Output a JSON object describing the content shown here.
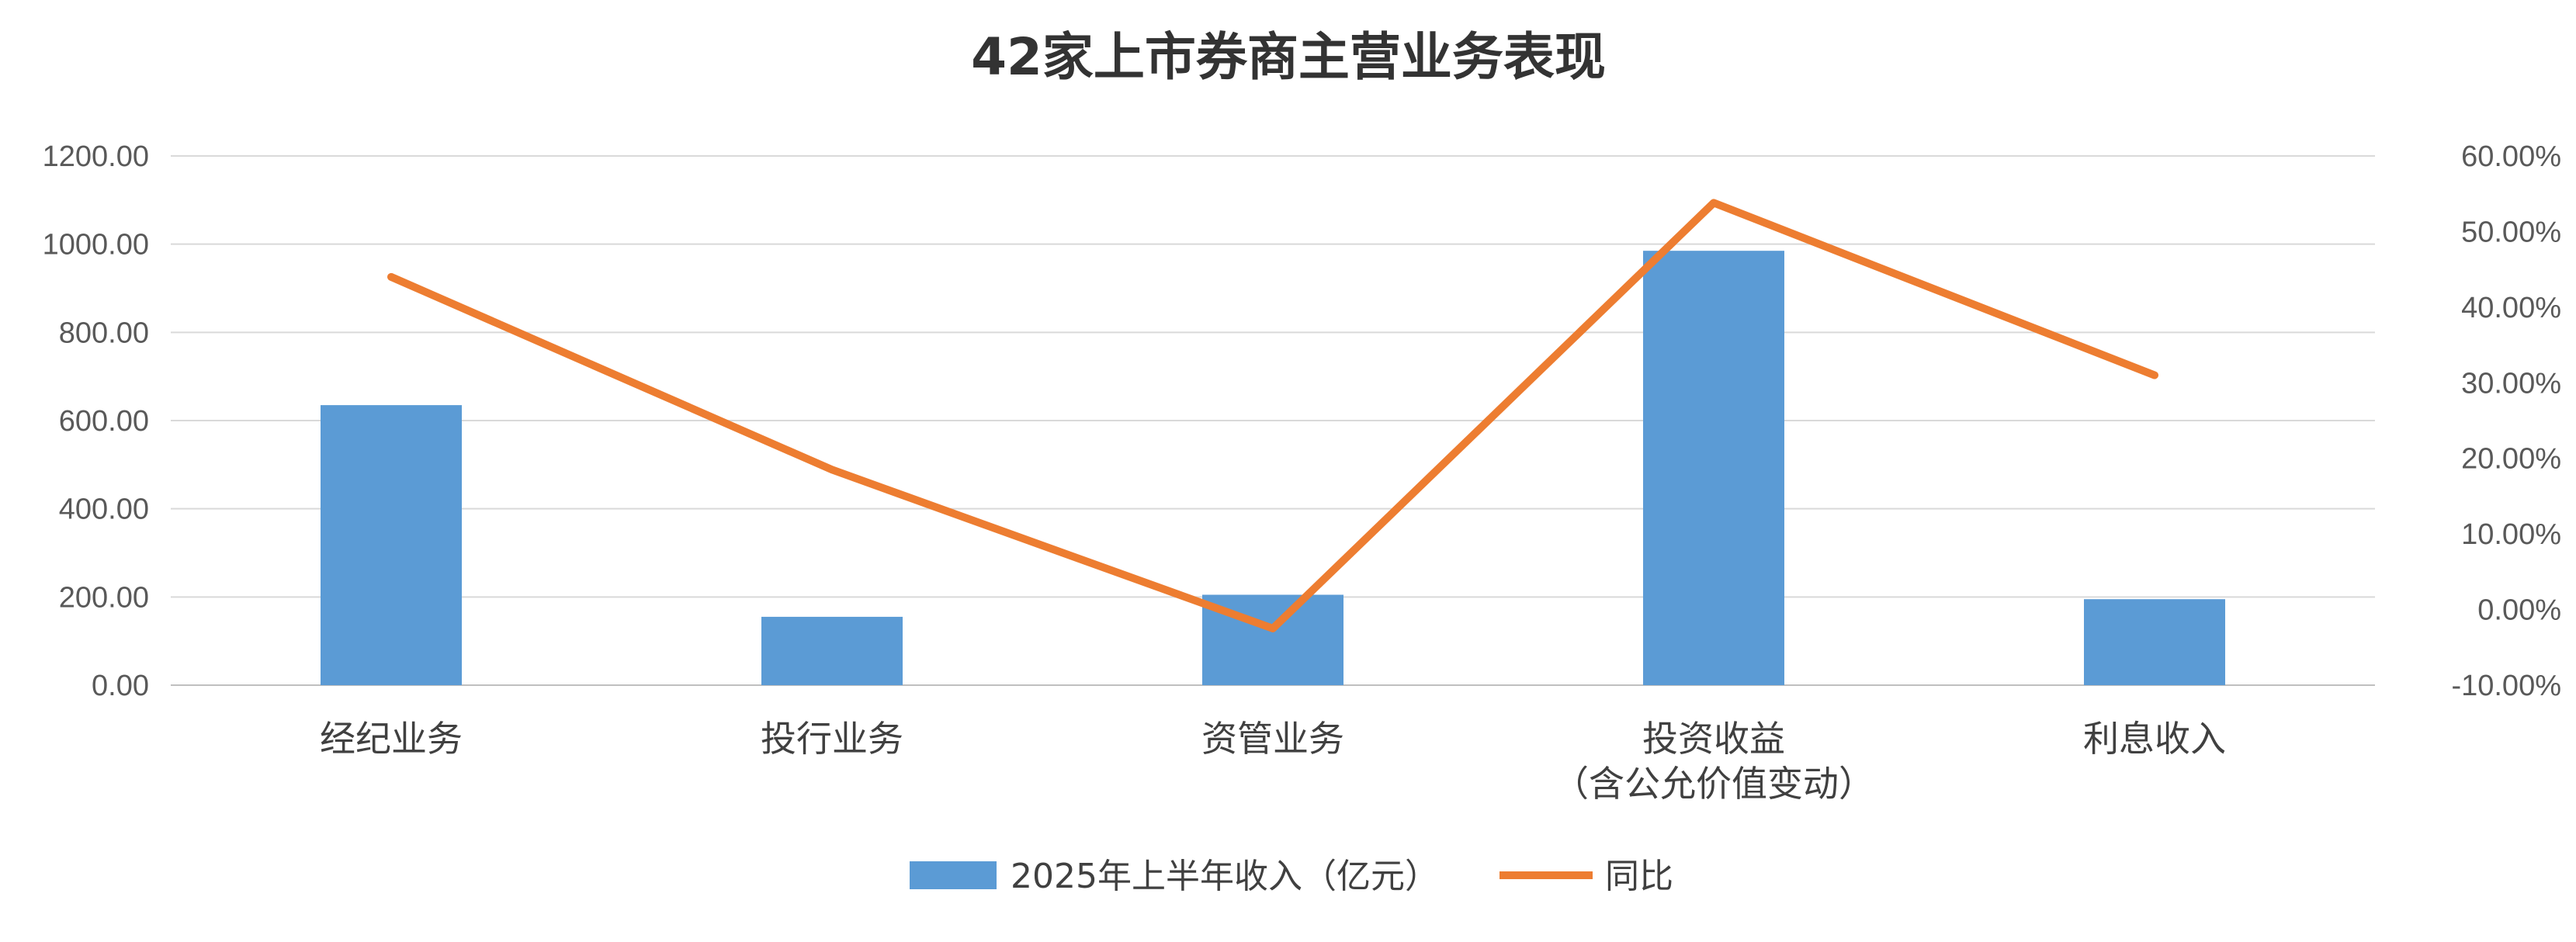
{
  "chart_data": {
    "type": "bar",
    "title": "42家上市券商主营业务表现",
    "categories": [
      [
        "经纪业务"
      ],
      [
        "投行业务"
      ],
      [
        "资管业务"
      ],
      [
        "投资收益",
        "（含公允价值变动）"
      ],
      [
        "利息收入"
      ]
    ],
    "series": [
      {
        "name": "2025年上半年收入（亿元）",
        "type": "bar",
        "axis": "left",
        "color": "#5b9bd5",
        "values": [
          635,
          155,
          205,
          985,
          195
        ]
      },
      {
        "name": "同比",
        "type": "line",
        "axis": "right",
        "color": "#ed7d31",
        "values": [
          44.0,
          18.5,
          -2.5,
          53.8,
          31.0
        ]
      }
    ],
    "y_left": {
      "ylim": [
        0,
        1200
      ],
      "ticks": [
        0,
        200,
        400,
        600,
        800,
        1000,
        1200
      ],
      "tick_labels": [
        "0.00",
        "200.00",
        "400.00",
        "600.00",
        "800.00",
        "1000.00",
        "1200.00"
      ]
    },
    "y_right": {
      "ylim": [
        -10,
        60
      ],
      "ticks": [
        -10,
        0,
        10,
        20,
        30,
        40,
        50,
        60
      ],
      "tick_labels": [
        "-10.00%",
        "0.00%",
        "10.00%",
        "20.00%",
        "30.00%",
        "40.00%",
        "50.00%",
        "60.00%"
      ]
    },
    "grid": true,
    "legend_position": "bottom-center"
  }
}
